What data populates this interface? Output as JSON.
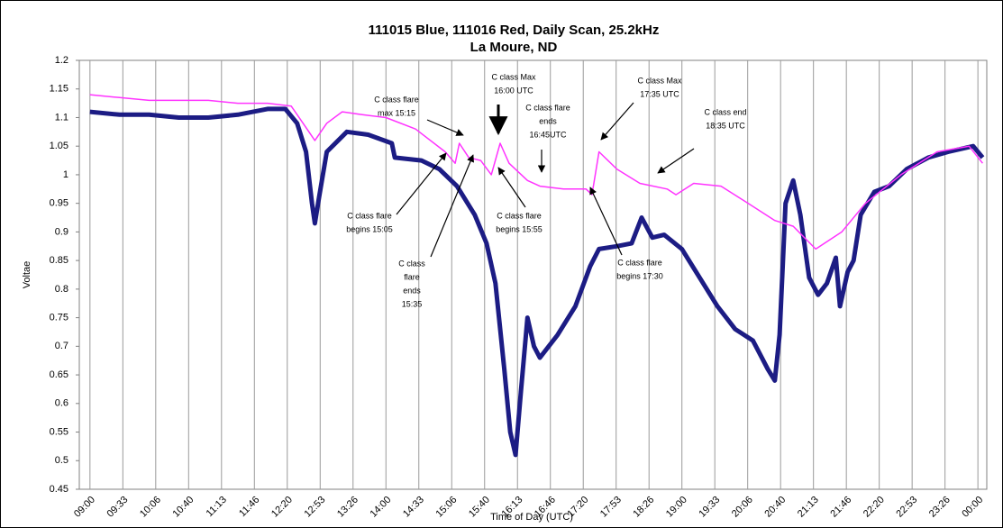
{
  "chart_data": {
    "type": "line",
    "title": [
      "111015 Blue, 111016 Red, Daily Scan, 25.2kHz",
      "La Moure, ND"
    ],
    "ylabel": "Voltae",
    "xlabel": "Time of Day (UTC)",
    "xlim": [
      8.82,
      24.15
    ],
    "ylim": [
      0.45,
      1.2
    ],
    "yticks": [
      0.45,
      0.5,
      0.55,
      0.6,
      0.65,
      0.7,
      0.75,
      0.8,
      0.85,
      0.9,
      0.95,
      1,
      1.05,
      1.1,
      1.15,
      1.2
    ],
    "xticks": [
      {
        "value": 9.0,
        "label": "09:00"
      },
      {
        "value": 9.5556,
        "label": "09:33"
      },
      {
        "value": 10.1111,
        "label": "10:06"
      },
      {
        "value": 10.6667,
        "label": "10:40"
      },
      {
        "value": 11.2222,
        "label": "11:13"
      },
      {
        "value": 11.7778,
        "label": "11:46"
      },
      {
        "value": 12.3333,
        "label": "12:20"
      },
      {
        "value": 12.8889,
        "label": "12:53"
      },
      {
        "value": 13.4444,
        "label": "13:26"
      },
      {
        "value": 14.0,
        "label": "14:00"
      },
      {
        "value": 14.5556,
        "label": "14:33"
      },
      {
        "value": 15.1111,
        "label": "15:06"
      },
      {
        "value": 15.6667,
        "label": "15:40"
      },
      {
        "value": 16.2222,
        "label": "16:13"
      },
      {
        "value": 16.7778,
        "label": "16:46"
      },
      {
        "value": 17.3333,
        "label": "17:20"
      },
      {
        "value": 17.8889,
        "label": "17:53"
      },
      {
        "value": 18.4444,
        "label": "18:26"
      },
      {
        "value": 19.0,
        "label": "19:00"
      },
      {
        "value": 19.5556,
        "label": "19:33"
      },
      {
        "value": 20.1111,
        "label": "20:06"
      },
      {
        "value": 20.6667,
        "label": "20:40"
      },
      {
        "value": 21.2222,
        "label": "21:13"
      },
      {
        "value": 21.7778,
        "label": "21:46"
      },
      {
        "value": 22.3333,
        "label": "22:20"
      },
      {
        "value": 22.8889,
        "label": "22:53"
      },
      {
        "value": 23.4444,
        "label": "23:26"
      },
      {
        "value": 24.0,
        "label": "00:00"
      }
    ],
    "grid": true,
    "series": [
      {
        "color": "#1c1c84",
        "width": 5,
        "x": [
          9.0,
          9.5,
          10.0,
          10.5,
          11.0,
          11.5,
          12.0,
          12.3,
          12.5,
          12.65,
          12.75,
          12.8,
          12.87,
          13.0,
          13.34,
          13.7,
          14.1,
          14.15,
          14.6,
          14.9,
          15.2,
          15.5,
          15.7,
          15.85,
          16.0,
          16.1,
          16.19,
          16.28,
          16.39,
          16.5,
          16.6,
          16.9,
          17.2,
          17.45,
          17.6,
          17.9,
          18.15,
          18.32,
          18.5,
          18.7,
          19.0,
          19.3,
          19.6,
          19.9,
          20.2,
          20.45,
          20.57,
          20.65,
          20.75,
          20.88,
          21.0,
          21.15,
          21.3,
          21.45,
          21.6,
          21.67,
          21.8,
          21.9,
          22.02,
          22.25,
          22.5,
          22.8,
          23.16,
          23.5,
          23.92,
          24.08
        ],
        "values": [
          1.11,
          1.105,
          1.105,
          1.1,
          1.1,
          1.105,
          1.115,
          1.115,
          1.09,
          1.04,
          0.95,
          0.915,
          0.96,
          1.04,
          1.075,
          1.07,
          1.055,
          1.03,
          1.025,
          1.01,
          0.98,
          0.93,
          0.88,
          0.81,
          0.66,
          0.55,
          0.51,
          0.62,
          0.75,
          0.7,
          0.68,
          0.72,
          0.77,
          0.84,
          0.87,
          0.875,
          0.88,
          0.925,
          0.89,
          0.895,
          0.87,
          0.82,
          0.77,
          0.73,
          0.71,
          0.66,
          0.64,
          0.72,
          0.95,
          0.99,
          0.93,
          0.82,
          0.79,
          0.81,
          0.855,
          0.77,
          0.83,
          0.85,
          0.93,
          0.97,
          0.98,
          1.01,
          1.03,
          1.04,
          1.05,
          1.03
        ]
      },
      {
        "color": "#ff33ff",
        "width": 1.5,
        "x": [
          9.0,
          9.5,
          10.0,
          10.5,
          11.0,
          11.5,
          12.0,
          12.4,
          12.6,
          12.8,
          13.0,
          13.26,
          13.6,
          14.0,
          14.5,
          15.0,
          15.17,
          15.24,
          15.4,
          15.6,
          15.78,
          15.93,
          16.08,
          16.39,
          16.6,
          17.0,
          17.38,
          17.48,
          17.6,
          17.9,
          18.29,
          18.75,
          18.9,
          19.2,
          19.66,
          20.12,
          20.57,
          20.88,
          21.26,
          21.7,
          22.1,
          22.7,
          23.31,
          23.85,
          24.08
        ],
        "values": [
          1.14,
          1.135,
          1.13,
          1.13,
          1.13,
          1.125,
          1.125,
          1.12,
          1.09,
          1.06,
          1.09,
          1.11,
          1.105,
          1.1,
          1.08,
          1.04,
          1.02,
          1.055,
          1.03,
          1.025,
          1.0,
          1.055,
          1.02,
          0.99,
          0.98,
          0.975,
          0.975,
          0.965,
          1.04,
          1.01,
          0.985,
          0.975,
          0.965,
          0.985,
          0.98,
          0.95,
          0.92,
          0.91,
          0.87,
          0.9,
          0.95,
          1.0,
          1.04,
          1.05,
          1.02
        ]
      }
    ],
    "annotations": [
      [
        "C class flare",
        "max 15:15"
      ],
      [
        "C class Max",
        "16:00 UTC"
      ],
      [
        "C class flare",
        "ends",
        "16:45UTC"
      ],
      [
        "C class Max",
        "17:35 UTC"
      ],
      [
        "C class end",
        "18:35 UTC"
      ],
      [
        "C class flare",
        "begins 15:05"
      ],
      [
        "C class",
        "flare",
        "ends",
        "15:35"
      ],
      [
        "C class flare",
        "begins 15:55"
      ],
      [
        "C class flare",
        "begins 17:30"
      ]
    ]
  }
}
